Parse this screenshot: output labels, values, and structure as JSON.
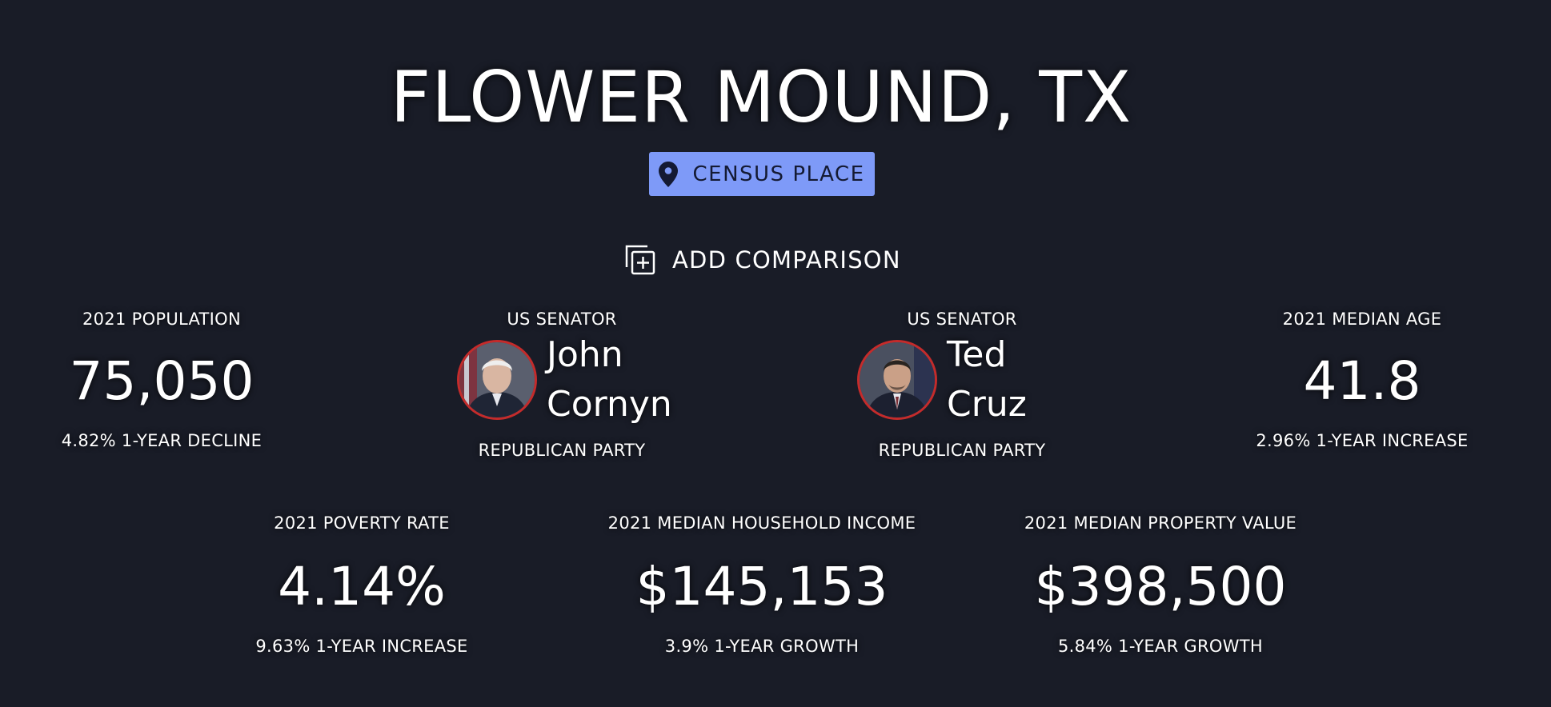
{
  "place": {
    "title": "FLOWER MOUND, TX",
    "badge_label": "CENSUS PLACE",
    "badge_color": "#7e9af8"
  },
  "compare": {
    "label": "ADD COMPARISON"
  },
  "stats": {
    "population": {
      "label": "2021 POPULATION",
      "value": "75,050",
      "change": "4.82% 1-YEAR DECLINE"
    },
    "median_age": {
      "label": "2021 MEDIAN AGE",
      "value": "41.8",
      "change": "2.96% 1-YEAR INCREASE"
    },
    "poverty_rate": {
      "label": "2021 POVERTY RATE",
      "value": "4.14%",
      "change": "9.63% 1-YEAR INCREASE"
    },
    "median_household_income": {
      "label": "2021 MEDIAN HOUSEHOLD INCOME",
      "value": "$145,153",
      "change": "3.9% 1-YEAR GROWTH"
    },
    "median_property_value": {
      "label": "2021 MEDIAN PROPERTY VALUE",
      "value": "$398,500",
      "change": "5.84% 1-YEAR GROWTH"
    }
  },
  "senators": [
    {
      "label": "US SENATOR",
      "first_name": "John",
      "last_name": "Cornyn",
      "party": "REPUBLICAN PARTY",
      "party_color": "#c42b2b"
    },
    {
      "label": "US SENATOR",
      "first_name": "Ted",
      "last_name": "Cruz",
      "party": "REPUBLICAN PARTY",
      "party_color": "#c42b2b"
    }
  ],
  "colors": {
    "background": "#191c27",
    "text": "#ffffff",
    "republican": "#c42b2b"
  }
}
